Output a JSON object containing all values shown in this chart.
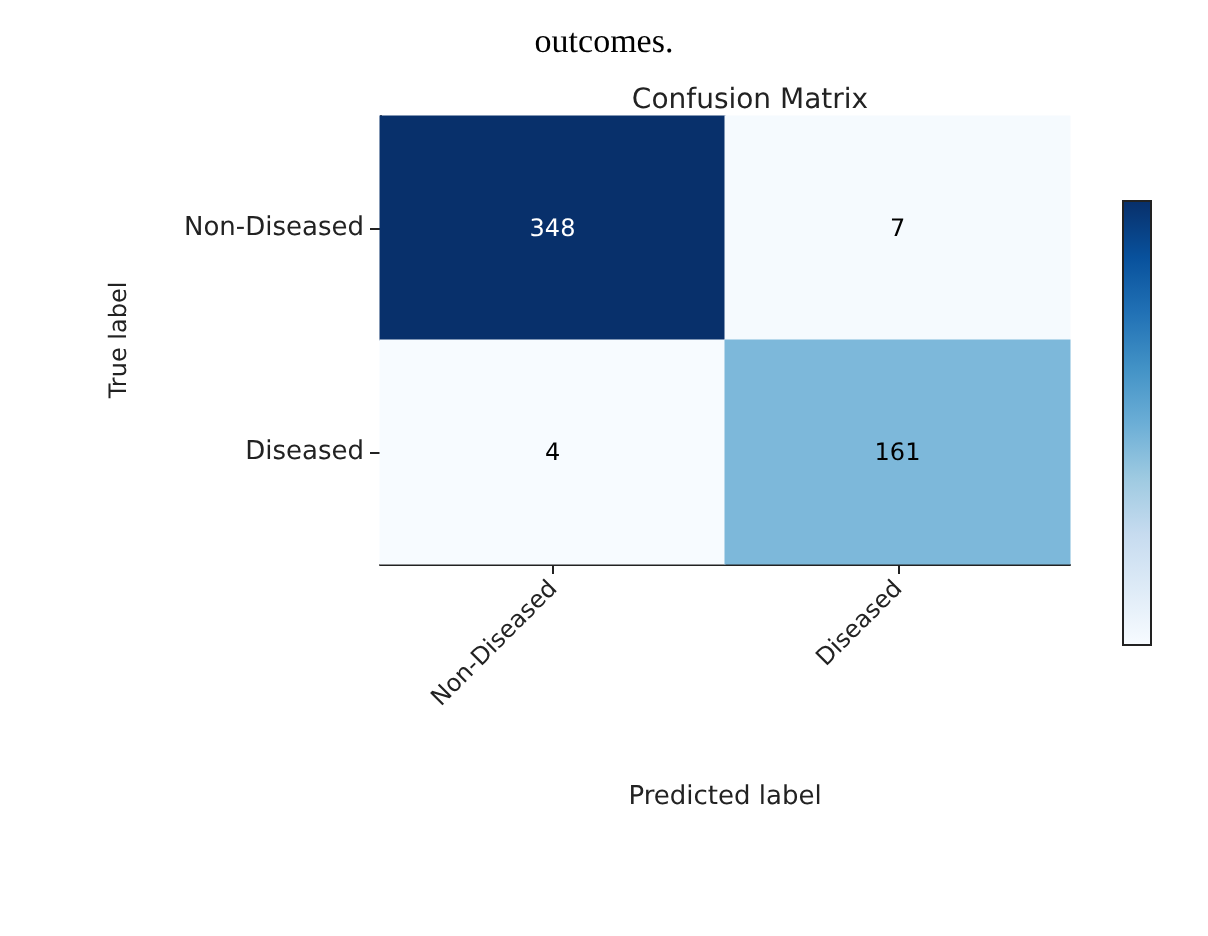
{
  "chart_data": {
    "type": "heatmap",
    "title": "Confusion Matrix",
    "xlabel": "Predicted label",
    "ylabel": "True label",
    "annotations": [
      "outcomes."
    ],
    "categories": [
      "Non-Diseased",
      "Diseased"
    ],
    "y_categories": [
      "Non-Diseased",
      "Diseased"
    ],
    "cells": [
      [
        348,
        7
      ],
      [
        4,
        161
      ]
    ],
    "data_labels": true
  }
}
